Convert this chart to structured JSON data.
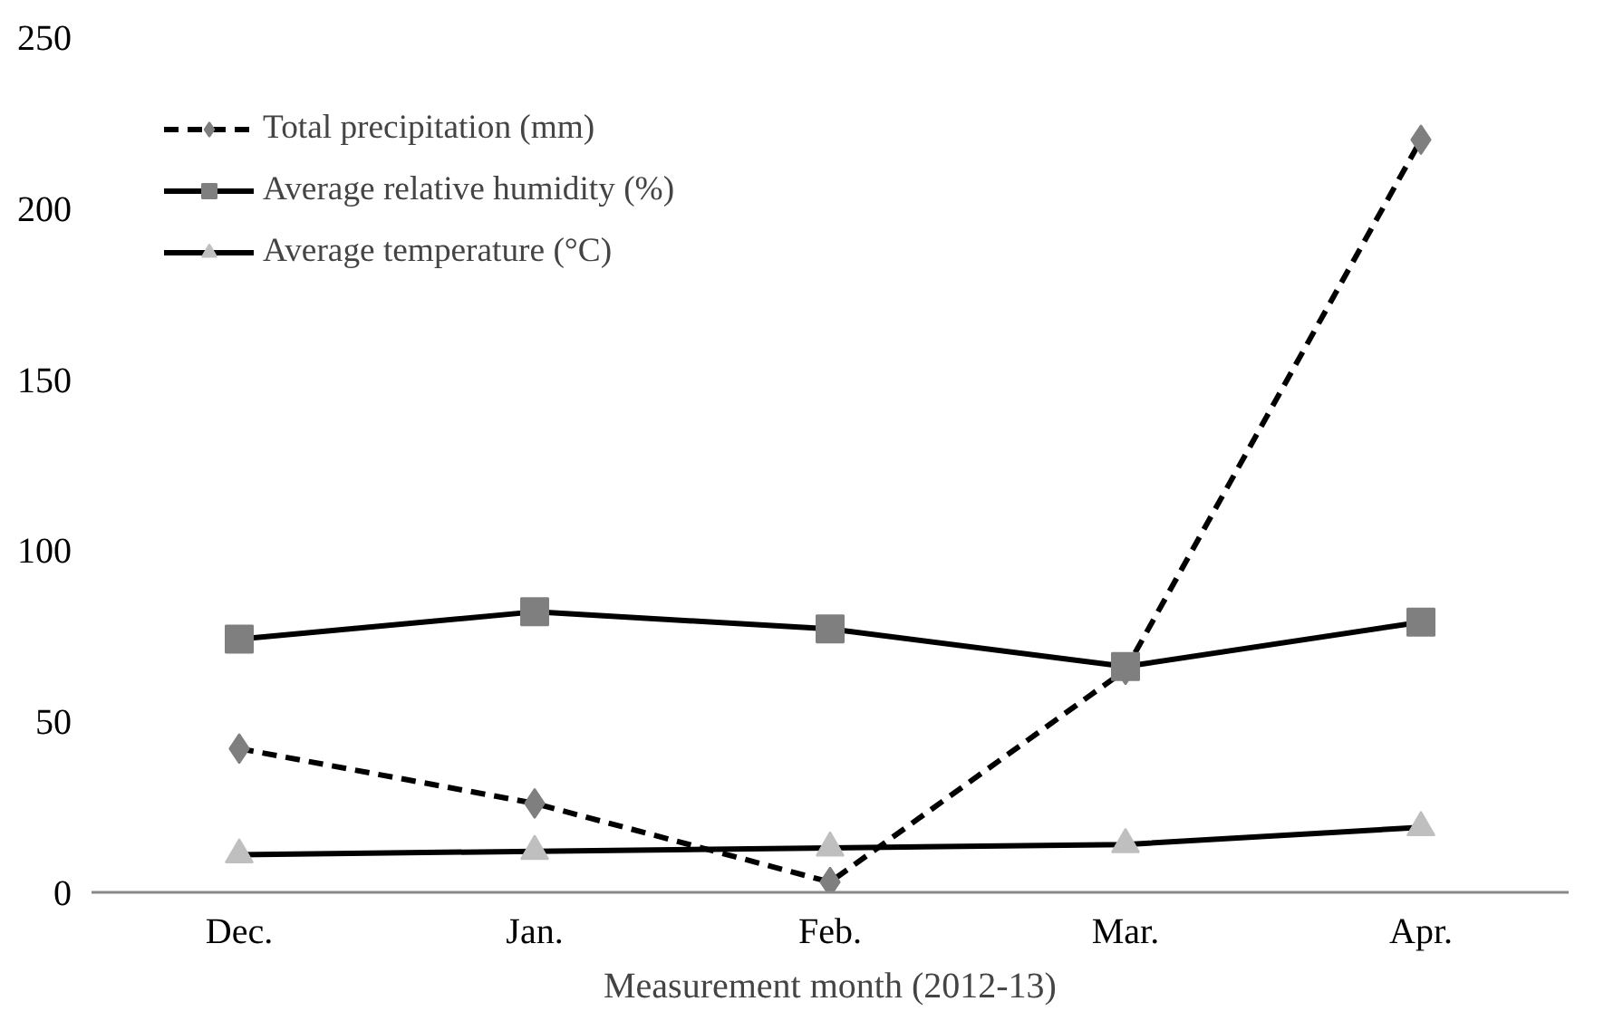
{
  "chart_data": {
    "type": "line",
    "xlabel": "Measurement month (2012-13)",
    "categories": [
      "Dec.",
      "Jan.",
      "Feb.",
      "Mar.",
      "Apr."
    ],
    "series": [
      {
        "name": "Total precipitation (mm)",
        "color": "#7f7f7f",
        "marker": "diamond",
        "line_style": "dashed",
        "values": [
          42,
          26,
          3,
          65,
          220
        ]
      },
      {
        "name": "Average relative humidity (%)",
        "color": "#7f7f7f",
        "marker": "square",
        "line_style": "solid",
        "values": [
          74,
          82,
          77,
          66,
          79
        ]
      },
      {
        "name": "Average temperature (°C)",
        "color": "#bfbfbf",
        "marker": "triangle",
        "line_style": "solid",
        "values": [
          11,
          12,
          13,
          14,
          19
        ]
      }
    ],
    "ylim": [
      0,
      250
    ],
    "yticks": [
      0,
      50,
      100,
      150,
      200,
      250
    ],
    "grid": false,
    "legend": "top left"
  }
}
